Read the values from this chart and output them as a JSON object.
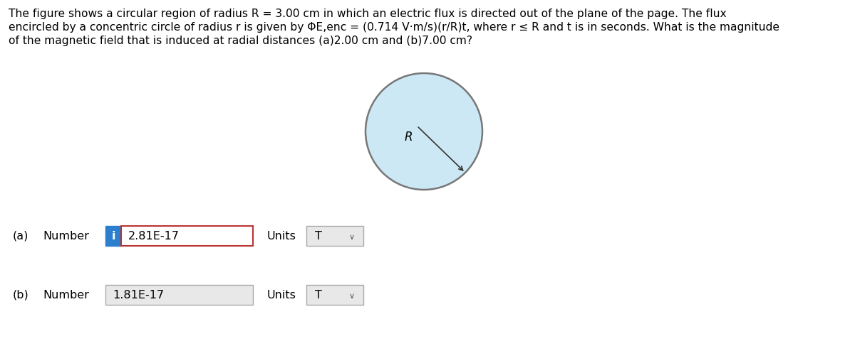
{
  "title_line1": "The figure shows a circular region of radius R = 3.00 cm in which an electric flux is directed out of the plane of the page. The flux",
  "title_line2": "encircled by a concentric circle of radius r is given by ΦE,enc = (0.714 V·m/s)(r/R)t, where r ≤ R and t is in seconds. What is the magnitude",
  "title_line3": "of the magnetic field that is induced at radial distances (a)2.00 cm and (b)7.00 cm?",
  "circle_fill_color": "#cde8f5",
  "circle_edge_color": "#777777",
  "radius_label": "R",
  "part_a_label": "(a)",
  "part_a_number_label": "Number",
  "part_a_i_label": "i",
  "part_a_value": "2.81E-17",
  "part_a_units_label": "Units",
  "part_a_units_value": "T",
  "part_b_label": "(b)",
  "part_b_number_label": "Number",
  "part_b_value": "1.81E-17",
  "part_b_units_label": "Units",
  "part_b_units_value": "T",
  "bg_color": "#ffffff",
  "text_color": "#000000",
  "font_size_text": 11.2,
  "font_size_parts": 11.5
}
